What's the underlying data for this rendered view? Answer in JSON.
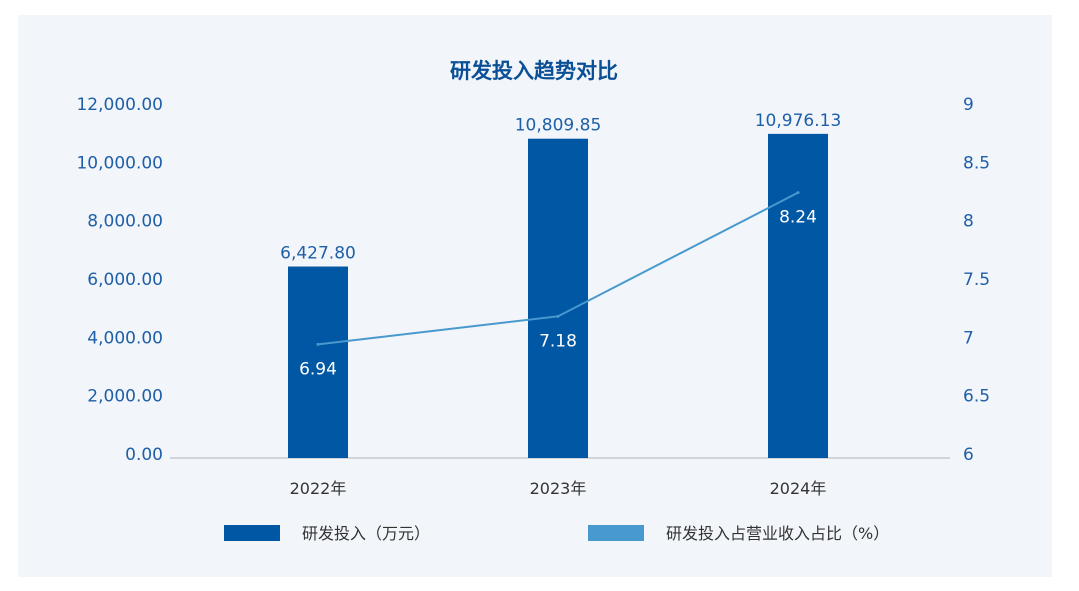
{
  "chart_data": {
    "type": "bar+line",
    "title": "研发投入趋势对比",
    "categories": [
      "2022年",
      "2023年",
      "2024年"
    ],
    "series": [
      {
        "name": "研发投入（万元）",
        "type": "bar",
        "axis": "left",
        "values": [
          6427.8,
          10809.85,
          10976.13
        ],
        "labels": [
          "6,427.80",
          "10,809.85",
          "10,976.13"
        ],
        "color": "#0057A3"
      },
      {
        "name": "研发投入占营业收入占比（%）",
        "type": "line",
        "axis": "right",
        "values": [
          6.94,
          7.18,
          8.24
        ],
        "labels": [
          "6.94",
          "7.18",
          "8.24"
        ],
        "color": "#4899CE"
      }
    ],
    "left_axis": {
      "range": [
        0,
        12000
      ],
      "ticks": [
        "0.00",
        "2,000.00",
        "4,000.00",
        "6,000.00",
        "8,000.00",
        "10,000.00",
        "12,000.00"
      ]
    },
    "right_axis": {
      "range": [
        6,
        9
      ],
      "ticks": [
        "6",
        "6.5",
        "7",
        "7.5",
        "8",
        "8.5",
        "9"
      ]
    },
    "grid": false,
    "legend": "bottom",
    "colors": {
      "background": "#F2F6FA",
      "title": "#0B4F96",
      "axis_text": "#1F5FA8"
    }
  }
}
